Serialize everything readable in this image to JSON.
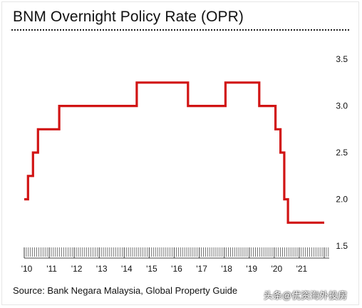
{
  "chart_data": {
    "type": "line",
    "title": "BNM Overnight Policy Rate (OPR)",
    "source": "Source: Bank Negara Malaysia, Global Property Guide",
    "xlabel": "",
    "ylabel": "",
    "x_tick_labels": [
      "'10",
      "'11",
      "'12",
      "'13",
      "'14",
      "'15",
      "'16",
      "'17",
      "'18",
      "'19",
      "'20",
      "'21"
    ],
    "x_tick_values": [
      2010,
      2011,
      2012,
      2013,
      2014,
      2015,
      2016,
      2017,
      2018,
      2019,
      2020,
      2021
    ],
    "xlim": [
      2010,
      2022.2
    ],
    "y_ticks": [
      "3.5",
      "3.0",
      "2.5",
      "2.0",
      "1.5"
    ],
    "y_tick_values": [
      3.5,
      3.0,
      2.5,
      2.0,
      1.5
    ],
    "ylim": [
      1.5,
      3.6
    ],
    "grid": false,
    "line_color": "#d11414",
    "series": [
      {
        "name": "",
        "step": true,
        "points": [
          [
            2010.0,
            2.0
          ],
          [
            2010.15,
            2.25
          ],
          [
            2010.35,
            2.5
          ],
          [
            2010.55,
            2.75
          ],
          [
            2011.4,
            3.0
          ],
          [
            2014.5,
            3.25
          ],
          [
            2016.55,
            3.0
          ],
          [
            2018.05,
            3.25
          ],
          [
            2019.4,
            3.0
          ],
          [
            2020.05,
            2.75
          ],
          [
            2020.25,
            2.5
          ],
          [
            2020.4,
            2.0
          ],
          [
            2020.55,
            1.75
          ],
          [
            2022.0,
            1.75
          ]
        ]
      }
    ]
  },
  "watermark": "头条@优资海外投房"
}
